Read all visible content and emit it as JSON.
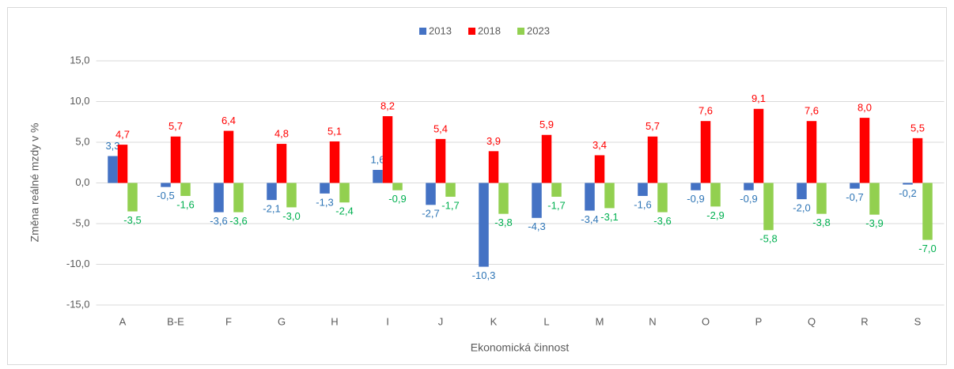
{
  "chart_data": {
    "type": "bar",
    "categories": [
      "A",
      "B-E",
      "F",
      "G",
      "H",
      "I",
      "J",
      "K",
      "L",
      "M",
      "N",
      "O",
      "P",
      "Q",
      "R",
      "S"
    ],
    "series": [
      {
        "name": "2013",
        "color": "#4472c4",
        "label_color": "#2e75b6",
        "values": [
          3.3,
          -0.5,
          -3.6,
          -2.1,
          -1.3,
          1.6,
          -2.7,
          -10.3,
          -4.3,
          -3.4,
          -1.6,
          -0.9,
          -0.9,
          -2.0,
          -0.7,
          -0.2
        ],
        "value_labels": [
          "3,3",
          "-0,5",
          "-3,6",
          "-2,1",
          "-1,3",
          "1,6",
          "-2,7",
          "-10,3",
          "-4,3",
          "-3,4",
          "-1,6",
          "-0,9",
          "-0,9",
          "-2,0",
          "-0,7",
          "-0,2"
        ]
      },
      {
        "name": "2018",
        "color": "#ff0000",
        "label_color": "#ff0000",
        "values": [
          4.7,
          5.7,
          6.4,
          4.8,
          5.1,
          8.2,
          5.4,
          3.9,
          5.9,
          3.4,
          5.7,
          7.6,
          9.1,
          7.6,
          8.0,
          5.5
        ],
        "value_labels": [
          "4,7",
          "5,7",
          "6,4",
          "4,8",
          "5,1",
          "8,2",
          "5,4",
          "3,9",
          "5,9",
          "3,4",
          "5,7",
          "7,6",
          "9,1",
          "7,6",
          "8,0",
          "5,5"
        ]
      },
      {
        "name": "2023",
        "color": "#92d050",
        "label_color": "#00b050",
        "values": [
          -3.5,
          -1.6,
          -3.6,
          -3.0,
          -2.4,
          -0.9,
          -1.7,
          -3.8,
          -1.7,
          -3.1,
          -3.6,
          -2.9,
          -5.8,
          -3.8,
          -3.9,
          -7.0
        ],
        "value_labels": [
          "-3,5",
          "-1,6",
          "-3,6",
          "-3,0",
          "-2,4",
          "-0,9",
          "-1,7",
          "-3,8",
          "-1,7",
          "-3,1",
          "-3,6",
          "-2,9",
          "-5,8",
          "-3,8",
          "-3,9",
          "-7,0"
        ]
      }
    ],
    "ylabel": "Změna reálné mzdy v %",
    "xlabel": "Ekonomická činnost",
    "ylim": [
      -15,
      15
    ],
    "yticks": [
      {
        "value": -15,
        "label": "-15,0"
      },
      {
        "value": -10,
        "label": "-10,0"
      },
      {
        "value": -5,
        "label": "-5,0"
      },
      {
        "value": 0,
        "label": "0,0"
      },
      {
        "value": 5,
        "label": "5,0"
      },
      {
        "value": 10,
        "label": "10,0"
      },
      {
        "value": 15,
        "label": "15,0"
      }
    ],
    "grid": true,
    "legend": "top"
  }
}
